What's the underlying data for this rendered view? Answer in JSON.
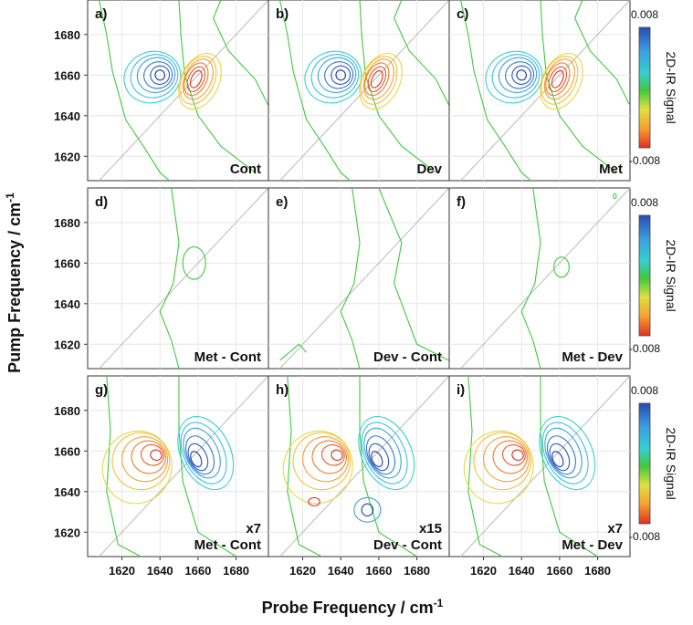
{
  "chart_data": {
    "type": "contour",
    "xlabel_main": "Probe Frequency / cm",
    "xlabel_sup": "-1",
    "ylabel_main": "Pump Frequency / cm",
    "ylabel_sup": "-1",
    "x_ticks": [
      "1620",
      "1640",
      "1660",
      "1680"
    ],
    "y_ticks": [
      "1620",
      "1640",
      "1660",
      "1680"
    ],
    "xlim": [
      1602,
      1697
    ],
    "ylim": [
      1608,
      1697
    ],
    "colorbar": {
      "title": "2D-IR Signal",
      "max_label": "0.008",
      "min_label": "-0.008",
      "colors": [
        "#2a4bb0",
        "#3aa0e0",
        "#36d0d0",
        "#40c840",
        "#e0e040",
        "#f5a030",
        "#e03020"
      ]
    },
    "panels": [
      {
        "letter": "a)",
        "tag": "Cont",
        "scale": "",
        "row": 0,
        "col": 0
      },
      {
        "letter": "b)",
        "tag": "Dev",
        "scale": "",
        "row": 0,
        "col": 1
      },
      {
        "letter": "c)",
        "tag": "Met",
        "scale": "",
        "row": 0,
        "col": 2
      },
      {
        "letter": "d)",
        "tag": "Met - Cont",
        "scale": "",
        "row": 1,
        "col": 0
      },
      {
        "letter": "e)",
        "tag": "Dev - Cont",
        "scale": "",
        "row": 1,
        "col": 1
      },
      {
        "letter": "f)",
        "tag": "Met - Dev",
        "scale": "",
        "row": 1,
        "col": 2
      },
      {
        "letter": "g)",
        "tag": "Met - Cont",
        "scale": "x7",
        "row": 2,
        "col": 0
      },
      {
        "letter": "h)",
        "tag": "Dev - Cont",
        "scale": "x15",
        "row": 2,
        "col": 1
      },
      {
        "letter": "i)",
        "tag": "Met - Dev",
        "scale": "x7",
        "row": 2,
        "col": 2
      }
    ]
  }
}
